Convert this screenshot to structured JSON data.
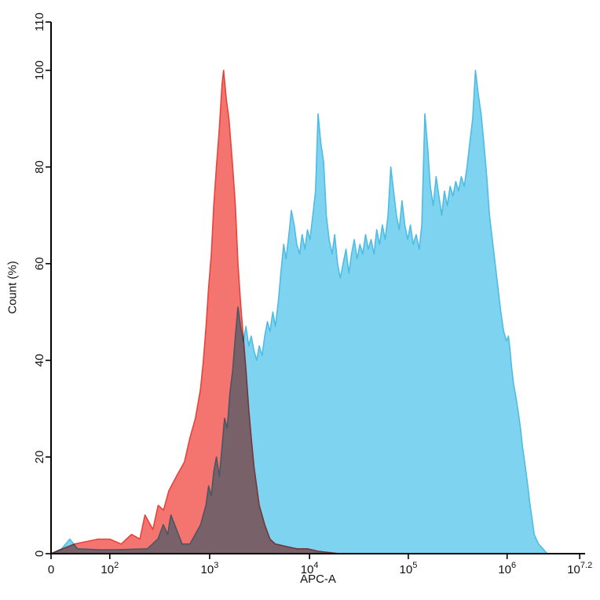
{
  "chart_data": {
    "type": "area",
    "title": "",
    "xlabel": "APC-A",
    "ylabel": "Count  (%)",
    "x_scale": "biexponential-log",
    "x_scale_anchors": [
      [
        0,
        0.0
      ],
      [
        100,
        0.11
      ],
      [
        1000,
        0.297
      ],
      [
        10000,
        0.484
      ],
      [
        100000,
        0.669
      ],
      [
        1000000,
        0.854
      ],
      [
        15850000,
        0.99
      ]
    ],
    "ylim": [
      0,
      110
    ],
    "y_ticks": [
      0,
      20,
      40,
      60,
      80,
      100,
      110
    ],
    "x_ticks": [
      {
        "value": 0,
        "base": "0",
        "sup": ""
      },
      {
        "value": 100,
        "base": "10",
        "sup": "2"
      },
      {
        "value": 1000,
        "base": "10",
        "sup": "3"
      },
      {
        "value": 10000,
        "base": "10",
        "sup": "4"
      },
      {
        "value": 100000,
        "base": "10",
        "sup": "5"
      },
      {
        "value": 1000000,
        "base": "10",
        "sup": "6"
      },
      {
        "value": 15850000,
        "base": "10",
        "sup": "7.2"
      }
    ],
    "grid": false,
    "legend": "none",
    "axis_color": "#000000",
    "series": [
      {
        "id": "red-histogram",
        "fill": "#F4756F",
        "stroke": "#E8423C",
        "points": [
          [
            0,
            0
          ],
          [
            20,
            1
          ],
          [
            40,
            2
          ],
          [
            60,
            2.5
          ],
          [
            80,
            3
          ],
          [
            100,
            3
          ],
          [
            130,
            2
          ],
          [
            165,
            4
          ],
          [
            200,
            3
          ],
          [
            225,
            8
          ],
          [
            270,
            5
          ],
          [
            305,
            10
          ],
          [
            345,
            9
          ],
          [
            390,
            13
          ],
          [
            465,
            16
          ],
          [
            560,
            19
          ],
          [
            635,
            24
          ],
          [
            720,
            28
          ],
          [
            810,
            34
          ],
          [
            865,
            40
          ],
          [
            920,
            47
          ],
          [
            975,
            55
          ],
          [
            1040,
            62
          ],
          [
            1100,
            72
          ],
          [
            1170,
            80
          ],
          [
            1250,
            88
          ],
          [
            1330,
            97
          ],
          [
            1380,
            100
          ],
          [
            1470,
            94
          ],
          [
            1560,
            90
          ],
          [
            1700,
            80
          ],
          [
            1810,
            72
          ],
          [
            1920,
            60
          ],
          [
            2040,
            52
          ],
          [
            2170,
            45
          ],
          [
            2310,
            38
          ],
          [
            2460,
            30
          ],
          [
            2610,
            24
          ],
          [
            2780,
            18
          ],
          [
            3140,
            10
          ],
          [
            3560,
            6
          ],
          [
            4020,
            3
          ],
          [
            4550,
            2
          ],
          [
            5820,
            1.5
          ],
          [
            7450,
            1
          ],
          [
            9530,
            1
          ],
          [
            12200,
            0.5
          ],
          [
            20000,
            0
          ]
        ]
      },
      {
        "id": "blue-histogram",
        "fill": "#7DD3F0",
        "stroke": "#4FBCE3",
        "points": [
          [
            0,
            0
          ],
          [
            18,
            1
          ],
          [
            32,
            3
          ],
          [
            45,
            1
          ],
          [
            82,
            0.8
          ],
          [
            113,
            0.8
          ],
          [
            237,
            1
          ],
          [
            303,
            3
          ],
          [
            343,
            6
          ],
          [
            380,
            4
          ],
          [
            409,
            8
          ],
          [
            466,
            5
          ],
          [
            530,
            2
          ],
          [
            634,
            2
          ],
          [
            718,
            4
          ],
          [
            811,
            6
          ],
          [
            918,
            10
          ],
          [
            975,
            14
          ],
          [
            1040,
            12
          ],
          [
            1100,
            17
          ],
          [
            1170,
            20
          ],
          [
            1250,
            16
          ],
          [
            1330,
            22
          ],
          [
            1410,
            28
          ],
          [
            1500,
            26
          ],
          [
            1590,
            33
          ],
          [
            1700,
            38
          ],
          [
            1810,
            45
          ],
          [
            1920,
            51
          ],
          [
            2040,
            47
          ],
          [
            2170,
            44
          ],
          [
            2310,
            47
          ],
          [
            2460,
            43
          ],
          [
            2610,
            45
          ],
          [
            2780,
            42
          ],
          [
            2960,
            40
          ],
          [
            3140,
            43
          ],
          [
            3350,
            41
          ],
          [
            3560,
            45
          ],
          [
            3790,
            48
          ],
          [
            4020,
            46
          ],
          [
            4290,
            50
          ],
          [
            4550,
            47
          ],
          [
            4860,
            52
          ],
          [
            5160,
            58
          ],
          [
            5510,
            64
          ],
          [
            5820,
            61
          ],
          [
            6220,
            66
          ],
          [
            6580,
            71
          ],
          [
            7020,
            68
          ],
          [
            7450,
            64
          ],
          [
            7950,
            62
          ],
          [
            8430,
            66
          ],
          [
            9000,
            63
          ],
          [
            9530,
            67
          ],
          [
            10100,
            65
          ],
          [
            10800,
            70
          ],
          [
            11500,
            75
          ],
          [
            12200,
            91
          ],
          [
            13000,
            85
          ],
          [
            13900,
            81
          ],
          [
            14800,
            70
          ],
          [
            15800,
            65
          ],
          [
            16900,
            62
          ],
          [
            18000,
            66
          ],
          [
            19200,
            60
          ],
          [
            20500,
            57
          ],
          [
            21900,
            60
          ],
          [
            23400,
            63
          ],
          [
            25000,
            58
          ],
          [
            26600,
            62
          ],
          [
            28400,
            65
          ],
          [
            30300,
            61
          ],
          [
            32400,
            64
          ],
          [
            34600,
            62
          ],
          [
            36900,
            66
          ],
          [
            39400,
            63
          ],
          [
            42000,
            65
          ],
          [
            44900,
            62
          ],
          [
            47900,
            67
          ],
          [
            51200,
            64
          ],
          [
            54600,
            68
          ],
          [
            58300,
            65
          ],
          [
            62300,
            70
          ],
          [
            66500,
            80
          ],
          [
            71000,
            75
          ],
          [
            75800,
            70
          ],
          [
            80900,
            67
          ],
          [
            86400,
            73
          ],
          [
            92200,
            68
          ],
          [
            98500,
            65
          ],
          [
            105000,
            68
          ],
          [
            112000,
            64
          ],
          [
            120000,
            66
          ],
          [
            129000,
            63
          ],
          [
            137000,
            68
          ],
          [
            147000,
            91
          ],
          [
            157000,
            84
          ],
          [
            167000,
            76
          ],
          [
            179000,
            72
          ],
          [
            191000,
            78
          ],
          [
            204000,
            74
          ],
          [
            218000,
            70
          ],
          [
            232000,
            75
          ],
          [
            248000,
            72
          ],
          [
            265000,
            76
          ],
          [
            283000,
            74
          ],
          [
            302000,
            77
          ],
          [
            322000,
            75
          ],
          [
            344000,
            78
          ],
          [
            368000,
            76
          ],
          [
            393000,
            80
          ],
          [
            419000,
            85
          ],
          [
            448000,
            90
          ],
          [
            478000,
            100
          ],
          [
            511000,
            95
          ],
          [
            545000,
            91
          ],
          [
            582000,
            85
          ],
          [
            622000,
            78
          ],
          [
            664000,
            70
          ],
          [
            709000,
            65
          ],
          [
            757000,
            60
          ],
          [
            809000,
            55
          ],
          [
            864000,
            50
          ],
          [
            922000,
            46
          ],
          [
            985000,
            44
          ],
          [
            1050000,
            45
          ],
          [
            1120000,
            42
          ],
          [
            1200000,
            38
          ],
          [
            1280000,
            35
          ],
          [
            1370000,
            33
          ],
          [
            1500000,
            30
          ],
          [
            1660000,
            26
          ],
          [
            1800000,
            22
          ],
          [
            2000000,
            18
          ],
          [
            2200000,
            14
          ],
          [
            2400000,
            10
          ],
          [
            2600000,
            7
          ],
          [
            2800000,
            4
          ],
          [
            3300000,
            2
          ],
          [
            3900000,
            1
          ],
          [
            4600000,
            0
          ]
        ]
      }
    ]
  }
}
